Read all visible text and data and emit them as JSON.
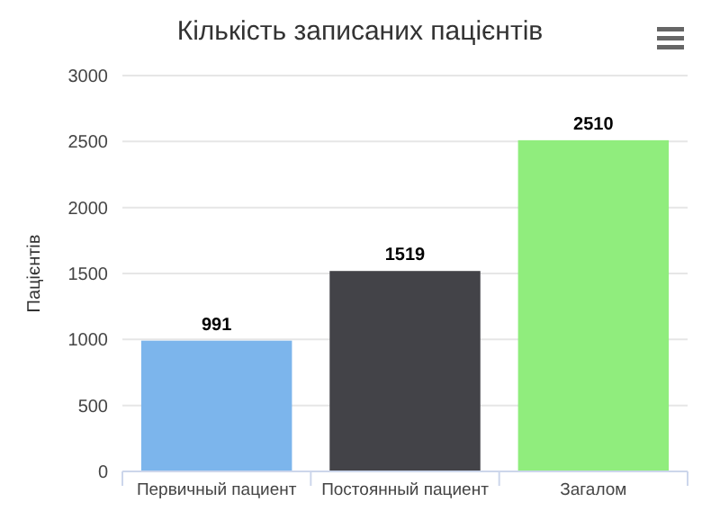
{
  "chart_data": {
    "type": "bar",
    "title": "Кількість записаних пацієнтів",
    "ylabel": "Пацієнтів",
    "categories": [
      "Первичный пациент",
      "Постоянный пациент",
      "Загалом"
    ],
    "values": [
      991,
      1519,
      2510
    ],
    "colors": [
      "#7cb5ec",
      "#434348",
      "#90ed7d"
    ],
    "ylim": [
      0,
      3000
    ],
    "yticks": [
      0,
      500,
      1000,
      1500,
      2000,
      2500,
      3000
    ],
    "grid": "y",
    "data_labels": true
  }
}
